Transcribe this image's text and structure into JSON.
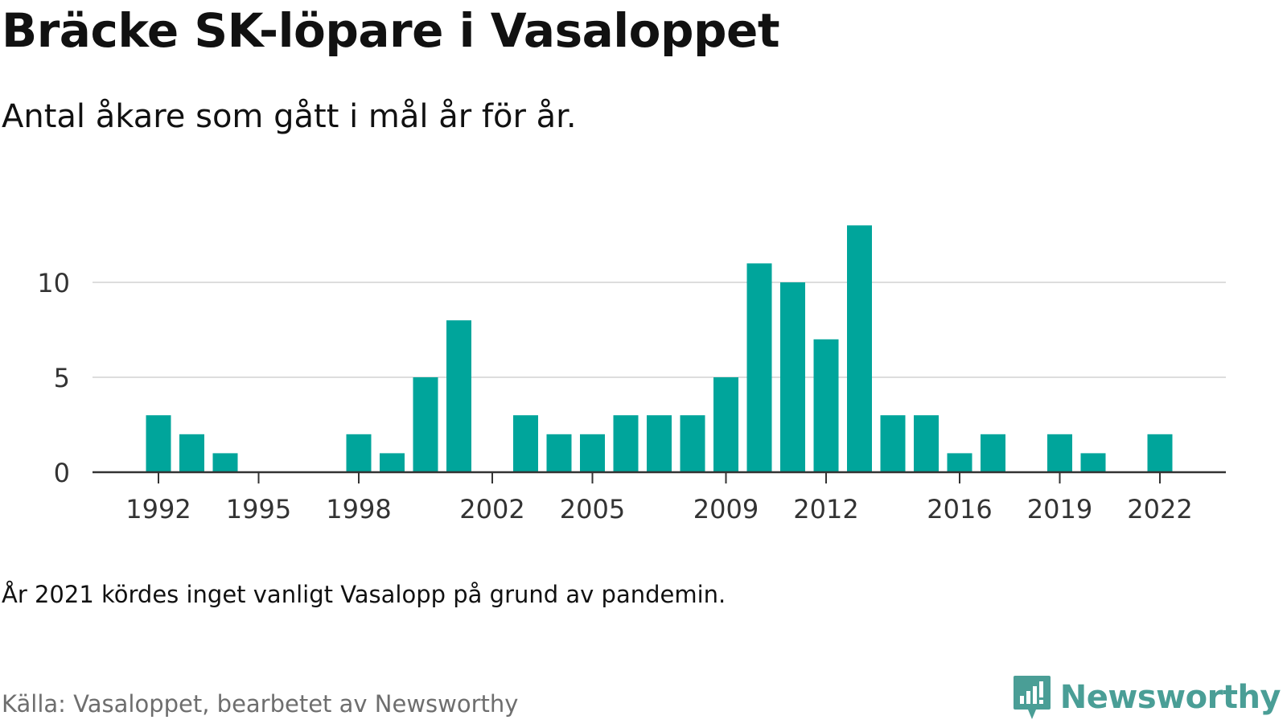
{
  "title": "Bräcke SK-löpare i Vasaloppet",
  "subtitle": "Antal åkare som gått i mål år för år.",
  "note": "År 2021 kördes inget vanligt Vasalopp på grund av pandemin.",
  "source": "Källa: Vasaloppet, bearbetet av Newsworthy",
  "brand": {
    "name": "Newsworthy",
    "icon": "newsworthy-logo-icon",
    "color": "#4a9e96"
  },
  "colors": {
    "bar": "#00a59b",
    "grid": "#dddddd",
    "axis": "#333333",
    "tick_text": "#333333"
  },
  "chart_data": {
    "type": "bar",
    "x": [
      1992,
      1993,
      1994,
      1995,
      1996,
      1997,
      1998,
      1999,
      2000,
      2001,
      2002,
      2003,
      2004,
      2005,
      2006,
      2007,
      2008,
      2009,
      2010,
      2011,
      2012,
      2013,
      2014,
      2015,
      2016,
      2017,
      2018,
      2019,
      2020,
      2021,
      2022
    ],
    "values": [
      3,
      2,
      1,
      0,
      0,
      0,
      2,
      1,
      5,
      8,
      0,
      3,
      2,
      2,
      3,
      3,
      3,
      5,
      11,
      10,
      7,
      13,
      3,
      3,
      1,
      2,
      0,
      2,
      1,
      0,
      2
    ],
    "x_tick_labels": [
      "1992",
      "1995",
      "1998",
      "2002",
      "2005",
      "2009",
      "2012",
      "2016",
      "2019",
      "2022"
    ],
    "y_ticks": [
      0,
      5,
      10
    ],
    "ylim": [
      0,
      13
    ],
    "grid": true,
    "legend": "none"
  }
}
